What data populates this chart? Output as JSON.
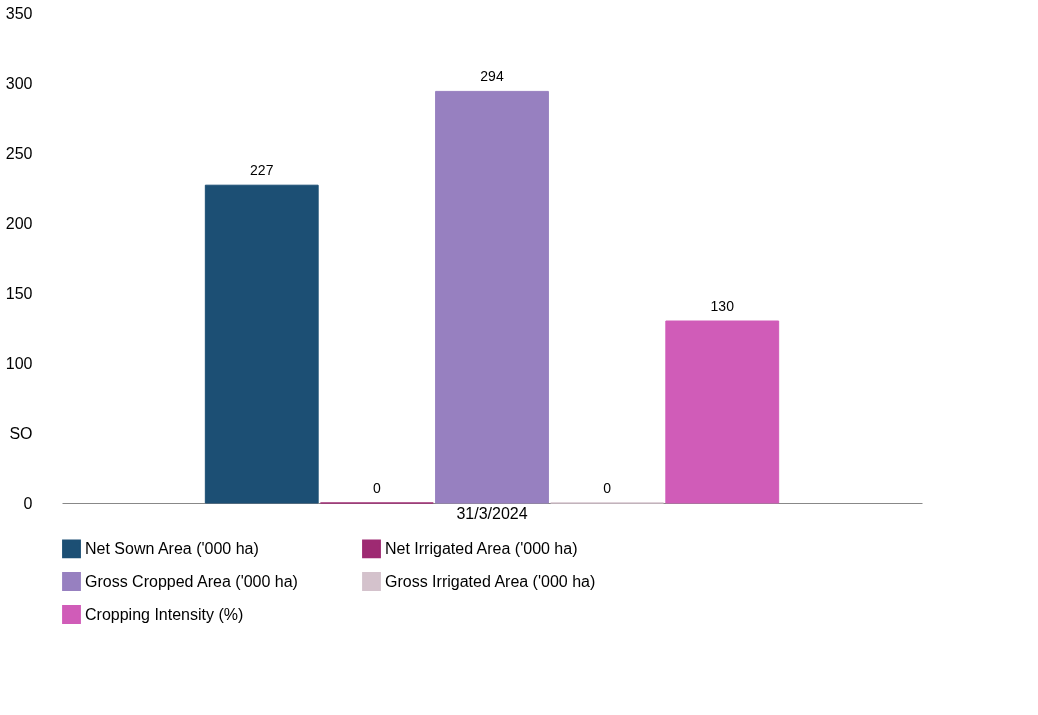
{
  "chart_data": {
    "type": "bar",
    "categories": [
      "31/3/2024"
    ],
    "series": [
      {
        "name": "Net Sown Area ('000 ha)",
        "color": "#1c4f74",
        "values": [
          227
        ]
      },
      {
        "name": "Net Irrigated Area ('000 ha)",
        "color": "#9e2a72",
        "values": [
          0
        ]
      },
      {
        "name": "Gross Cropped Area ('000 ha)",
        "color": "#9780c0",
        "values": [
          294
        ]
      },
      {
        "name": "Gross Irrigated Area ('000 ha)",
        "color": "#d4c2cc",
        "values": [
          0
        ]
      },
      {
        "name": "Cropping Intensity (%)",
        "color": "#d05cb8",
        "values": [
          130
        ]
      }
    ],
    "ylim": [
      0,
      350
    ],
    "yticks": [
      0,
      {
        "value": 50,
        "label": "SO"
      },
      100,
      150,
      200,
      250,
      300,
      350
    ],
    "data_labels": true,
    "grid": false,
    "legend": "bottom"
  }
}
